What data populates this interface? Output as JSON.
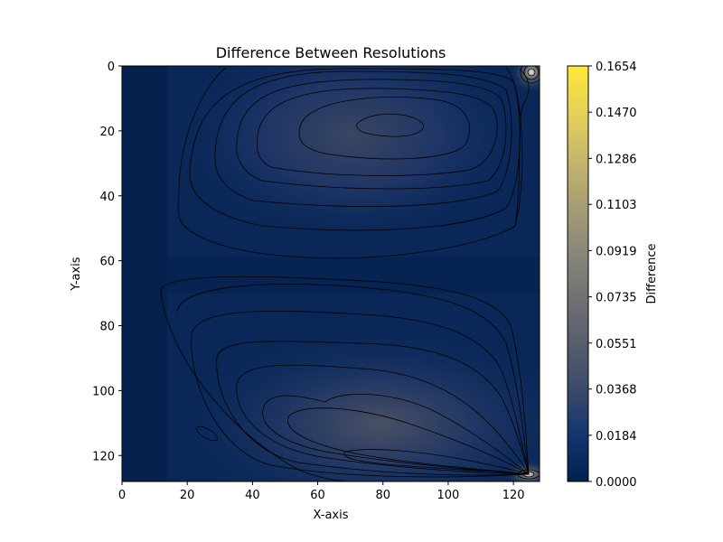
{
  "chart_data": {
    "type": "heatmap",
    "title": "Difference Between Resolutions",
    "xlabel": "X-axis",
    "ylabel": "Y-axis",
    "x_ticks": [
      "0",
      "20",
      "40",
      "60",
      "80",
      "100",
      "120"
    ],
    "y_ticks": [
      "0",
      "20",
      "40",
      "60",
      "80",
      "100",
      "120"
    ],
    "xlim": [
      0,
      128
    ],
    "ylim": [
      128,
      0
    ],
    "y_axis_inverted": true,
    "colormap": "cividis",
    "colorbar": {
      "label": "Difference",
      "range": [
        0.0,
        0.1654
      ],
      "tick_labels": [
        "0.0000",
        "0.0184",
        "0.0368",
        "0.0551",
        "0.0735",
        "0.0919",
        "0.1103",
        "0.1286",
        "0.1470",
        "0.1654"
      ]
    },
    "contour_lines": true,
    "features": [
      {
        "region": "upper vortex",
        "center": [
          82,
          18
        ],
        "approx_value": 0.04
      },
      {
        "region": "lower vortex",
        "center": [
          80,
          112
        ],
        "approx_value": 0.045
      },
      {
        "region": "corner hotspot",
        "center": [
          126,
          2
        ],
        "approx_value": 0.1654
      },
      {
        "region": "corner hotspot",
        "center": [
          126,
          126
        ],
        "approx_value": 0.12
      }
    ],
    "colors": {
      "low": "#00224e",
      "mid_low": "#123570",
      "mid": "#7c7b78",
      "high": "#fee838",
      "contour": "#000000"
    }
  }
}
